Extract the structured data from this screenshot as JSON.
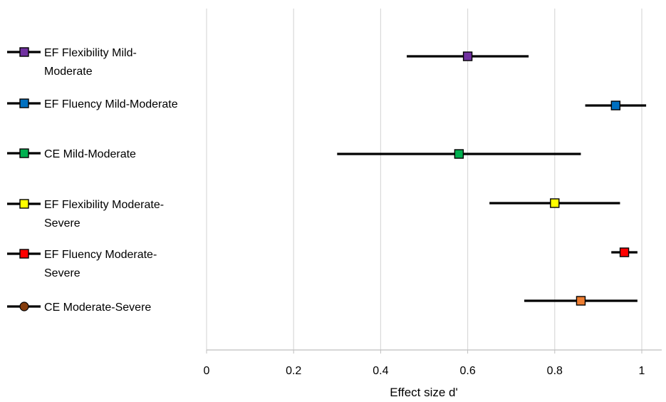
{
  "chart_data": {
    "type": "forest",
    "xlabel": "Effect size d'",
    "xlim": [
      0,
      1
    ],
    "xticks": [
      0,
      0.2,
      0.4,
      0.6,
      0.8,
      1
    ],
    "xtick_labels": [
      "0",
      "0.2",
      "0.4",
      "0.6",
      "0.8",
      "1"
    ],
    "grid": "vertical",
    "legend_position": "left",
    "series": [
      {
        "name": "EF Flexibility Mild-Moderate",
        "legend_lines": [
          "EF Flexibility Mild-",
          "Moderate"
        ],
        "value": 0.6,
        "ci": [
          0.46,
          0.74
        ],
        "color": "#7030A0",
        "marker": "square",
        "legend_marker": "square"
      },
      {
        "name": "EF Fluency Mild-Moderate",
        "legend_lines": [
          "EF Fluency Mild-Moderate"
        ],
        "value": 0.94,
        "ci": [
          0.87,
          1.01
        ],
        "color": "#0070C0",
        "marker": "square",
        "legend_marker": "square"
      },
      {
        "name": "CE Mild-Moderate",
        "legend_lines": [
          "CE Mild-Moderate"
        ],
        "value": 0.58,
        "ci": [
          0.3,
          0.86
        ],
        "color": "#00B050",
        "marker": "square",
        "legend_marker": "square"
      },
      {
        "name": "EF Flexibility Moderate-Severe",
        "legend_lines": [
          "EF Flexibility Moderate-",
          "Severe"
        ],
        "value": 0.8,
        "ci": [
          0.65,
          0.95
        ],
        "color": "#FFFF00",
        "marker": "square",
        "legend_marker": "square"
      },
      {
        "name": "EF Fluency Moderate-Severe",
        "legend_lines": [
          "EF Fluency Moderate-",
          "Severe"
        ],
        "value": 0.96,
        "ci": [
          0.93,
          0.99
        ],
        "color": "#FF0000",
        "marker": "square",
        "legend_marker": "square"
      },
      {
        "name": "CE Moderate-Severe",
        "legend_lines": [
          "CE Moderate-Severe"
        ],
        "value": 0.86,
        "ci": [
          0.73,
          0.99
        ],
        "color": "#ED7D31",
        "marker": "square",
        "legend_marker": "circle",
        "legend_color": "#843C0C"
      }
    ]
  }
}
